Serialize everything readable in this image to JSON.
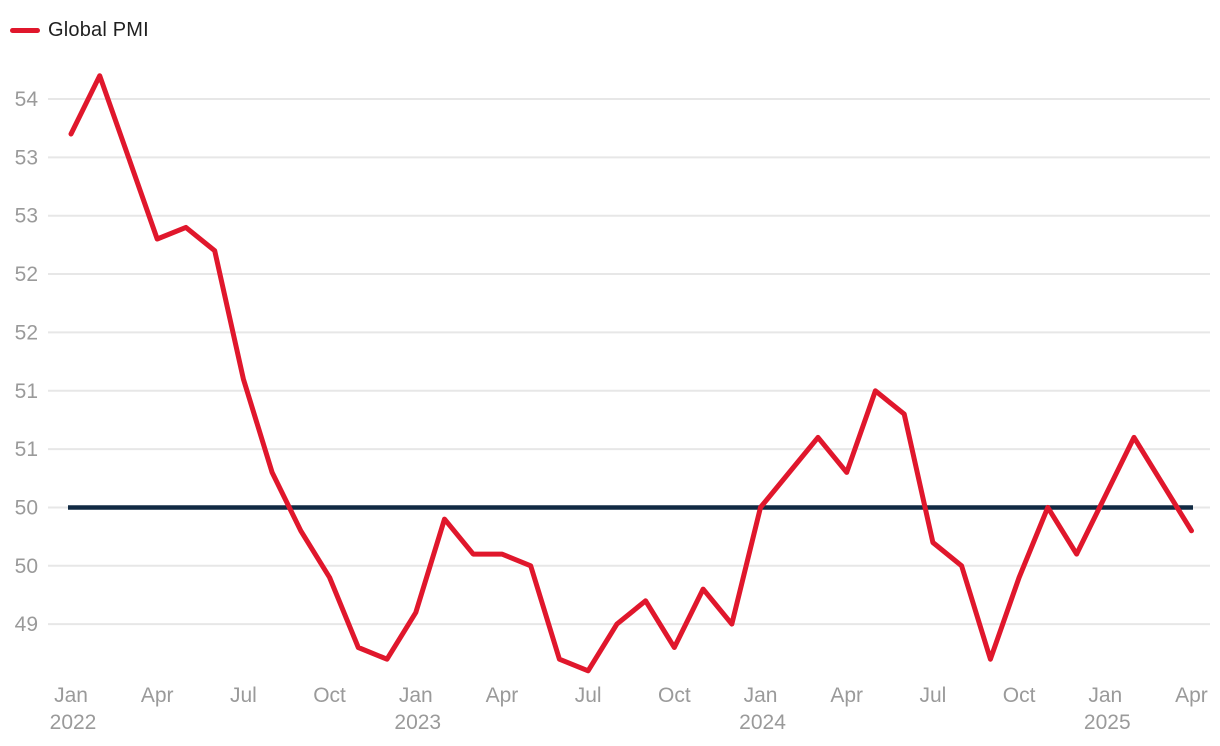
{
  "legend": {
    "label": "Global PMI"
  },
  "colors": {
    "series": "#e0172c",
    "baseline": "#112a43",
    "grid": "#e7e7e7",
    "axis_text": "#9a9a9a",
    "legend_text": "#1f1f1f",
    "background": "#ffffff"
  },
  "chart_data": {
    "type": "line",
    "title": "",
    "legend_position": "top-left",
    "grid": "horizontal-only",
    "x": [
      "Jan 2022",
      "Feb 2022",
      "Mar 2022",
      "Apr 2022",
      "May 2022",
      "Jun 2022",
      "Jul 2022",
      "Aug 2022",
      "Sep 2022",
      "Oct 2022",
      "Nov 2022",
      "Dec 2022",
      "Jan 2023",
      "Feb 2023",
      "Mar 2023",
      "Apr 2023",
      "May 2023",
      "Jun 2023",
      "Jul 2023",
      "Aug 2023",
      "Sep 2023",
      "Oct 2023",
      "Nov 2023",
      "Dec 2023",
      "Jan 2024",
      "Feb 2024",
      "Mar 2024",
      "Apr 2024",
      "May 2024",
      "Jun 2024",
      "Jul 2024",
      "Aug 2024",
      "Sep 2024",
      "Oct 2024",
      "Nov 2024",
      "Dec 2024",
      "Jan 2025",
      "Feb 2025",
      "Mar 2025",
      "Apr 2025"
    ],
    "series": [
      {
        "name": "Global PMI",
        "color": "#e0172c",
        "values": [
          53.2,
          53.7,
          53.0,
          52.3,
          52.4,
          52.2,
          51.1,
          50.3,
          49.8,
          49.4,
          48.8,
          48.7,
          49.1,
          49.9,
          49.6,
          49.6,
          49.5,
          48.7,
          48.6,
          49.0,
          49.2,
          48.8,
          49.3,
          49.0,
          50.0,
          50.3,
          50.6,
          50.3,
          51.0,
          50.8,
          49.7,
          49.5,
          48.7,
          49.4,
          50.0,
          49.6,
          50.1,
          50.6,
          50.2,
          49.8
        ]
      }
    ],
    "baseline": {
      "value": 50.0,
      "color": "#112a43"
    },
    "yticks": {
      "values": [
        53.5,
        53.0,
        52.5,
        52.0,
        51.5,
        51.0,
        50.5,
        50.0,
        49.5,
        49.0
      ],
      "labels": [
        "54",
        "53",
        "53",
        "52",
        "52",
        "51",
        "51",
        "50",
        "50",
        "49"
      ]
    },
    "xticks": [
      {
        "index": 0,
        "label": "Jan",
        "year": "2022"
      },
      {
        "index": 3,
        "label": "Apr"
      },
      {
        "index": 6,
        "label": "Jul"
      },
      {
        "index": 9,
        "label": "Oct"
      },
      {
        "index": 12,
        "label": "Jan",
        "year": "2023"
      },
      {
        "index": 15,
        "label": "Apr"
      },
      {
        "index": 18,
        "label": "Jul"
      },
      {
        "index": 21,
        "label": "Oct"
      },
      {
        "index": 24,
        "label": "Jan",
        "year": "2024"
      },
      {
        "index": 27,
        "label": "Apr"
      },
      {
        "index": 30,
        "label": "Jul"
      },
      {
        "index": 33,
        "label": "Oct"
      },
      {
        "index": 36,
        "label": "Jan",
        "year": "2025"
      },
      {
        "index": 39,
        "label": "Apr"
      }
    ],
    "ylim": [
      48.4,
      53.9
    ],
    "ylabel": "",
    "xlabel": ""
  }
}
